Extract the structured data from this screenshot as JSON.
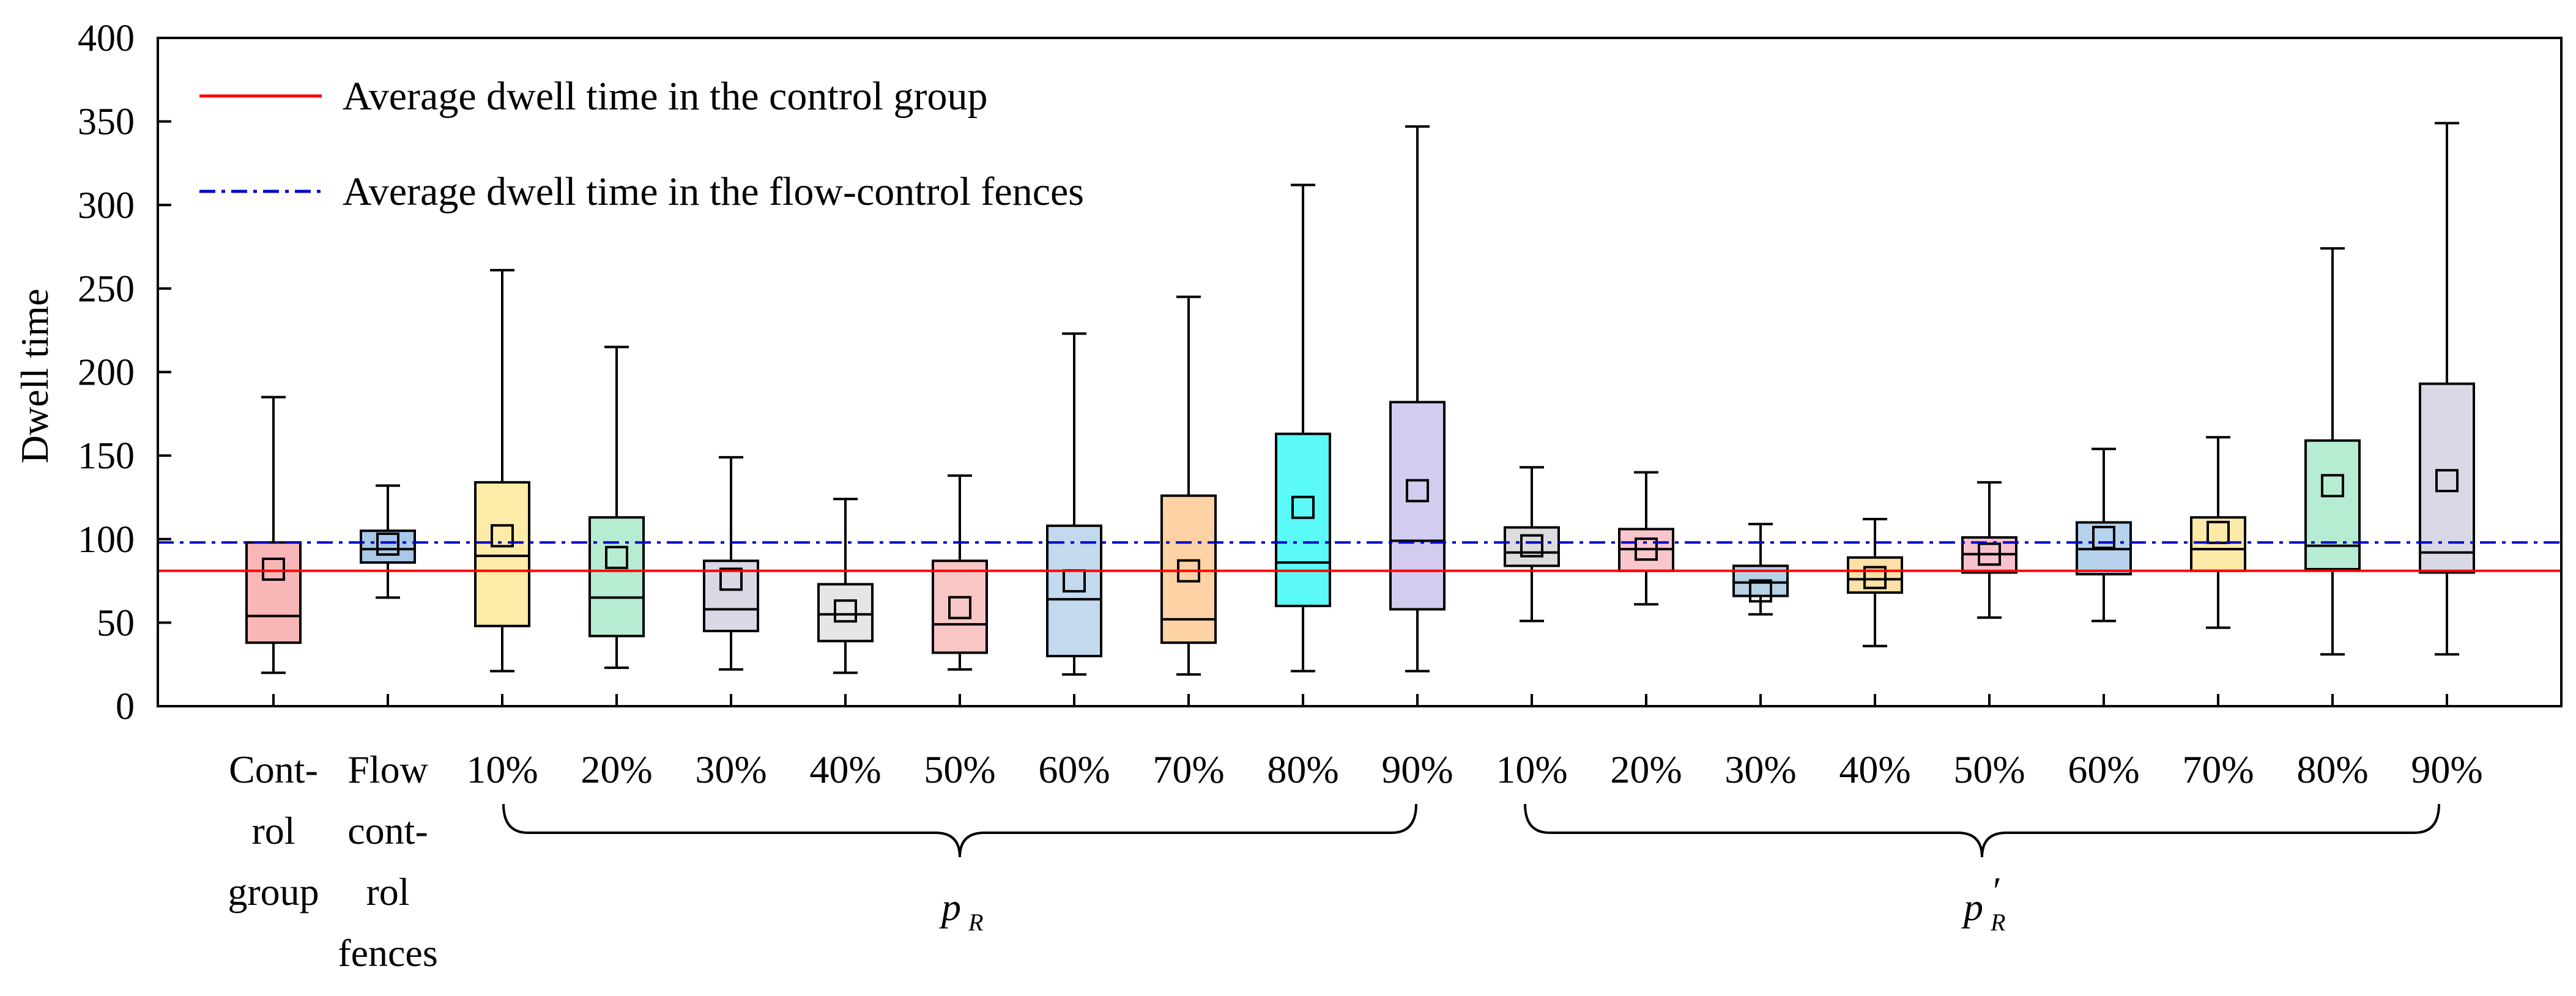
{
  "chart_data": {
    "type": "boxplot",
    "ylabel": "Dwell time",
    "ylim": [
      0,
      400
    ],
    "yticks": [
      0,
      50,
      100,
      150,
      200,
      250,
      300,
      350,
      400
    ],
    "legend": [
      {
        "label": "Average dwell time in the control group",
        "color": "#ff0000",
        "style": "solid",
        "value": 81
      },
      {
        "label": "Average dwell time in the flow-control fences",
        "color": "#0000cc",
        "style": "dash-dot",
        "value": 98
      }
    ],
    "groups": [
      {
        "label": "p",
        "subscript": "R",
        "prime": false
      },
      {
        "label": "p",
        "subscript": "R",
        "prime": true
      }
    ],
    "boxes": [
      {
        "label": [
          "Cont-",
          "rol",
          "group"
        ],
        "min": 20,
        "q1": 38,
        "median": 54,
        "q3": 98,
        "max": 185,
        "mean": 82,
        "color": "#f9b6b6"
      },
      {
        "label": [
          "Flow",
          "cont-",
          "rol",
          "fences"
        ],
        "min": 65,
        "q1": 86,
        "median": 94,
        "q3": 105,
        "max": 132,
        "mean": 97,
        "color": "#a8c8e8"
      },
      {
        "label": [
          "10%"
        ],
        "min": 21,
        "q1": 48,
        "median": 90,
        "q3": 134,
        "max": 261,
        "mean": 102,
        "color": "#fdeba8"
      },
      {
        "label": [
          "20%"
        ],
        "min": 23,
        "q1": 42,
        "median": 65,
        "q3": 113,
        "max": 215,
        "mean": 89,
        "color": "#b6ecd2"
      },
      {
        "label": [
          "30%"
        ],
        "min": 22,
        "q1": 45,
        "median": 58,
        "q3": 87,
        "max": 149,
        "mean": 76,
        "color": "#d9d9e6"
      },
      {
        "label": [
          "40%"
        ],
        "min": 20,
        "q1": 39,
        "median": 55,
        "q3": 73,
        "max": 124,
        "mean": 57,
        "color": "#e6e6e6"
      },
      {
        "label": [
          "50%"
        ],
        "min": 22,
        "q1": 32,
        "median": 49,
        "q3": 87,
        "max": 138,
        "mean": 59,
        "color": "#f9c6c6"
      },
      {
        "label": [
          "60%"
        ],
        "min": 19,
        "q1": 30,
        "median": 64,
        "q3": 108,
        "max": 223,
        "mean": 75,
        "color": "#c2d9ee"
      },
      {
        "label": [
          "70%"
        ],
        "min": 19,
        "q1": 38,
        "median": 52,
        "q3": 126,
        "max": 245,
        "mean": 81,
        "color": "#fdd2a4"
      },
      {
        "label": [
          "80%"
        ],
        "min": 21,
        "q1": 60,
        "median": 86,
        "q3": 163,
        "max": 312,
        "mean": 119,
        "color": "#5cf9f9"
      },
      {
        "label": [
          "90%"
        ],
        "min": 21,
        "q1": 58,
        "median": 99,
        "q3": 182,
        "max": 347,
        "mean": 129,
        "color": "#d4ccee"
      },
      {
        "label": [
          "10%"
        ],
        "min": 51,
        "q1": 84,
        "median": 92,
        "q3": 107,
        "max": 143,
        "mean": 96,
        "color": "#dcdcdc"
      },
      {
        "label": [
          "20%"
        ],
        "min": 61,
        "q1": 81,
        "median": 94,
        "q3": 106,
        "max": 140,
        "mean": 94,
        "color": "#f9c6cc"
      },
      {
        "label": [
          "30%"
        ],
        "min": 55,
        "q1": 66,
        "median": 74,
        "q3": 84,
        "max": 109,
        "mean": 69,
        "color": "#b6d2e8"
      },
      {
        "label": [
          "40%"
        ],
        "min": 36,
        "q1": 68,
        "median": 76,
        "q3": 89,
        "max": 112,
        "mean": 77,
        "color": "#fde0a6"
      },
      {
        "label": [
          "50%"
        ],
        "min": 53,
        "q1": 80,
        "median": 91,
        "q3": 101,
        "max": 134,
        "mean": 91,
        "color": "#f7c2cc"
      },
      {
        "label": [
          "60%"
        ],
        "min": 51,
        "q1": 79,
        "median": 94,
        "q3": 110,
        "max": 154,
        "mean": 101,
        "color": "#b6d2ec"
      },
      {
        "label": [
          "70%"
        ],
        "min": 47,
        "q1": 81,
        "median": 94,
        "q3": 113,
        "max": 161,
        "mean": 104,
        "color": "#fdeaa8"
      },
      {
        "label": [
          "80%"
        ],
        "min": 31,
        "q1": 82,
        "median": 96,
        "q3": 159,
        "max": 274,
        "mean": 132,
        "color": "#b6ecd2"
      },
      {
        "label": [
          "90%"
        ],
        "min": 31,
        "q1": 80,
        "median": 92,
        "q3": 193,
        "max": 349,
        "mean": 135,
        "color": "#d9d9e6"
      }
    ]
  }
}
